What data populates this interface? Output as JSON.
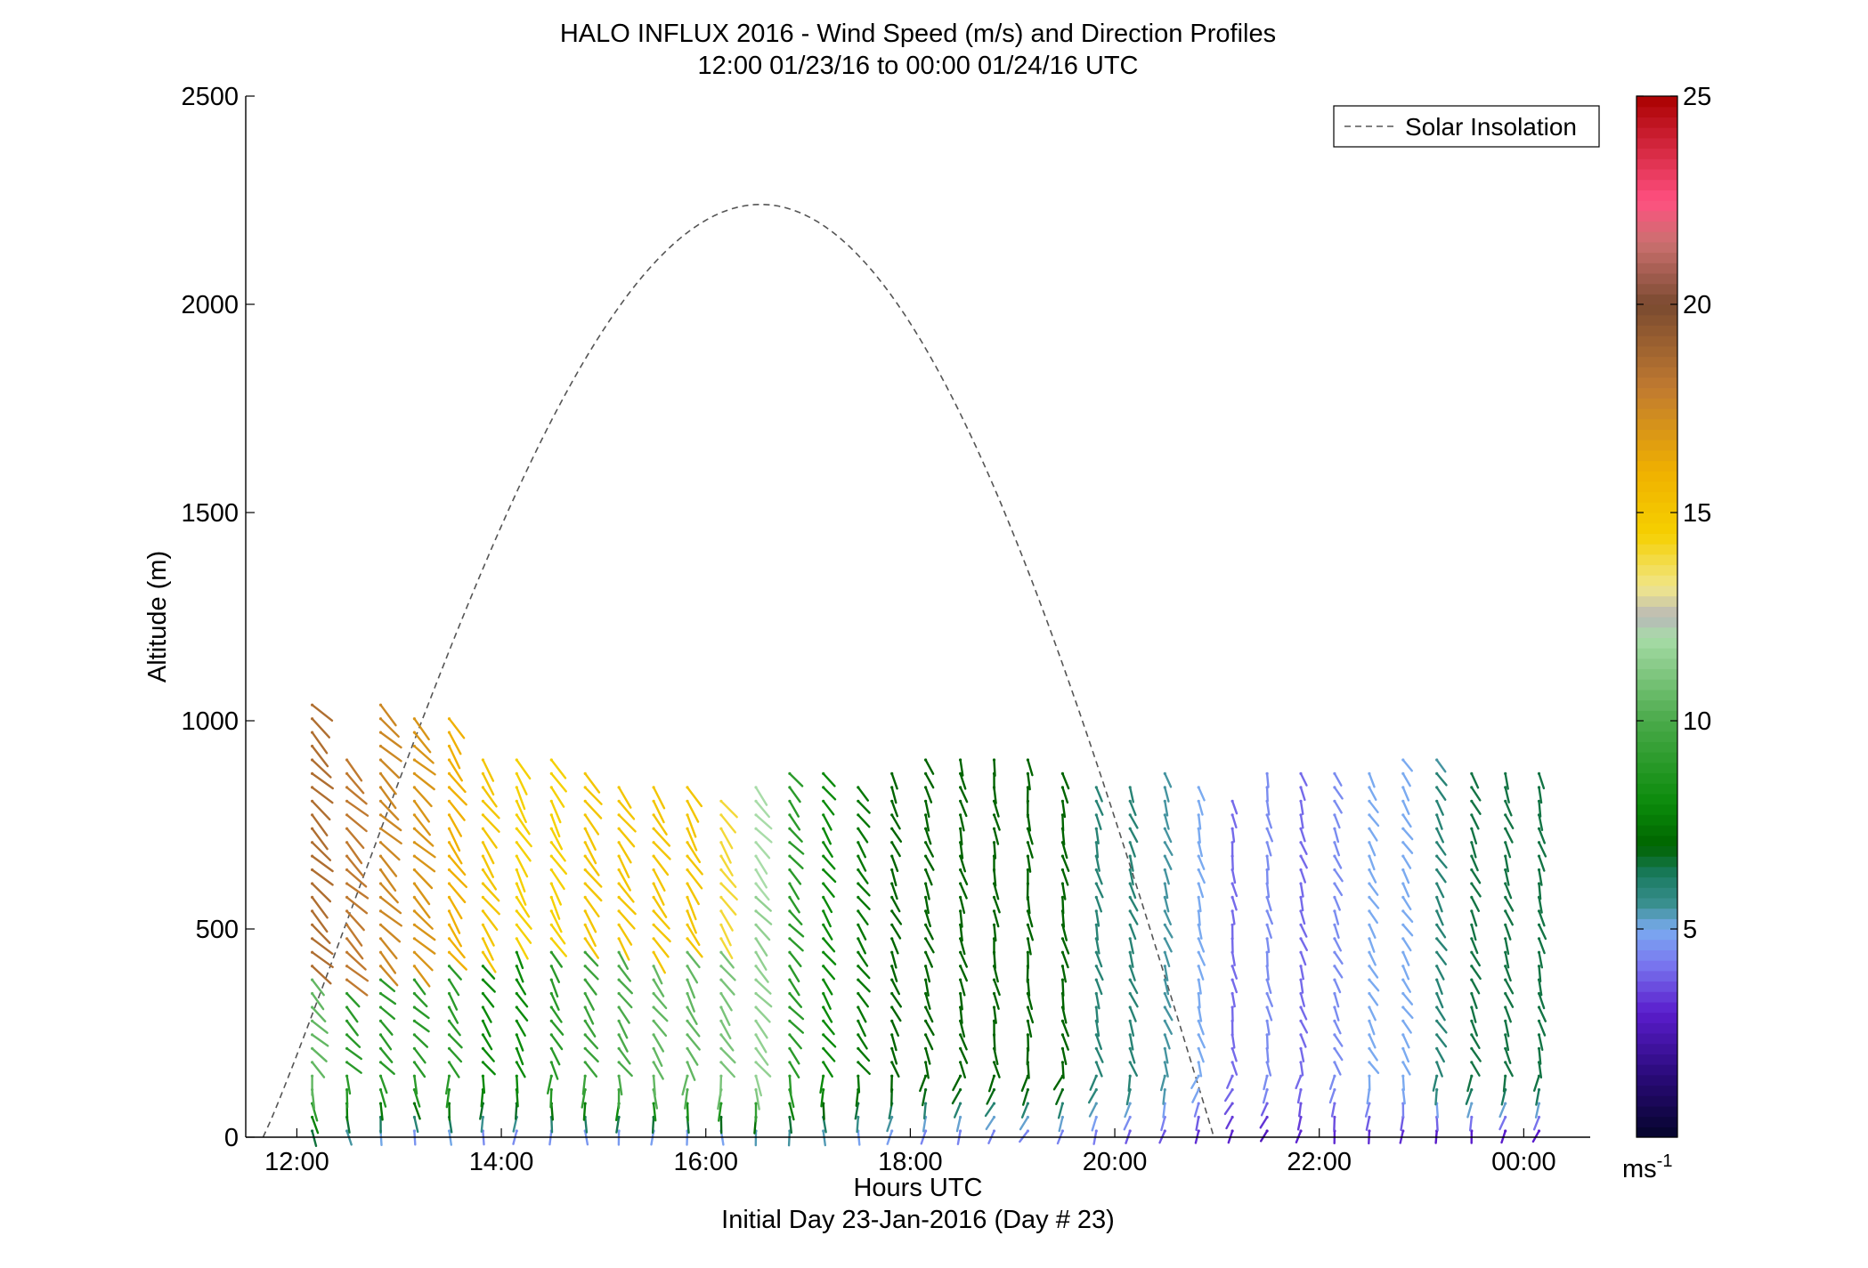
{
  "chart_data": {
    "type": "wind barb profile",
    "title": "HALO INFLUX 2016 - Wind Speed (m/s) and Direction Profiles",
    "subtitle": "12:00 01/23/16 to 00:00 01/24/16  UTC",
    "xlabel": "Hours UTC",
    "xlabel2": "Initial Day 23-Jan-2016 (Day # 23)",
    "ylabel": "Altitude (m)",
    "xlim": [
      11.5,
      24.65
    ],
    "ylim": [
      0,
      2500
    ],
    "xticks": [
      12,
      14,
      16,
      18,
      20,
      22,
      24
    ],
    "xtick_labels": [
      "12:00",
      "14:00",
      "16:00",
      "18:00",
      "20:00",
      "22:00",
      "00:00"
    ],
    "yticks": [
      0,
      500,
      1000,
      1500,
      2000,
      2500
    ],
    "ytick_labels": [
      "0",
      "500",
      "1000",
      "1500",
      "2000",
      "2500"
    ],
    "legend": {
      "entries": [
        "Solar Insolation"
      ],
      "position": "top-right"
    },
    "colorbar": {
      "min": 0,
      "max": 25,
      "ticks": [
        5,
        10,
        15,
        20,
        25
      ],
      "tick_labels": [
        "5",
        "10",
        "15",
        "20",
        "25"
      ],
      "unit_base": "ms",
      "unit_exp": "-1",
      "stops": [
        {
          "v": 0,
          "c": "#05052a"
        },
        {
          "v": 1.5,
          "c": "#2a0a7a"
        },
        {
          "v": 3,
          "c": "#5a1ccc"
        },
        {
          "v": 4.2,
          "c": "#7a7af0"
        },
        {
          "v": 5,
          "c": "#7aaaf0"
        },
        {
          "v": 5.6,
          "c": "#3a9090"
        },
        {
          "v": 6.3,
          "c": "#1a7a60"
        },
        {
          "v": 7,
          "c": "#006400"
        },
        {
          "v": 8,
          "c": "#0a8a0a"
        },
        {
          "v": 10,
          "c": "#4aaa4a"
        },
        {
          "v": 12,
          "c": "#a8dca8"
        },
        {
          "v": 12.5,
          "c": "#b8b8b8"
        },
        {
          "v": 13.2,
          "c": "#f0e68c"
        },
        {
          "v": 14.5,
          "c": "#f5d000"
        },
        {
          "v": 16,
          "c": "#f0b000"
        },
        {
          "v": 18,
          "c": "#c07a30"
        },
        {
          "v": 20,
          "c": "#7a4a30"
        },
        {
          "v": 21.5,
          "c": "#cc7070"
        },
        {
          "v": 22.5,
          "c": "#ff5080"
        },
        {
          "v": 25,
          "c": "#aa0000"
        }
      ]
    },
    "solar_insolation": {
      "start_hour": 11.67,
      "end_hour": 20.97,
      "peak_hour": 16.33,
      "peak_altitude": 2240
    },
    "profiles": [
      {
        "t": 12.08,
        "top": 1050,
        "s0": 6,
        "s1": 10.5,
        "s2": 18.5,
        "dir": 225,
        "bnd": 380
      },
      {
        "t": 12.42,
        "top": 920,
        "s0": 5,
        "s1": 9,
        "s2": 18,
        "dir": 225,
        "bnd": 360
      },
      {
        "t": 12.75,
        "top": 1060,
        "s0": 4.5,
        "s1": 9,
        "s2": 17.5,
        "dir": 225,
        "bnd": 400
      },
      {
        "t": 13.08,
        "top": 1010,
        "s0": 4,
        "s1": 9,
        "s2": 17,
        "dir": 225,
        "bnd": 410
      },
      {
        "t": 13.42,
        "top": 1010,
        "s0": 4.5,
        "s1": 9,
        "s2": 16,
        "dir": 215,
        "bnd": 420
      },
      {
        "t": 13.75,
        "top": 930,
        "s0": 4,
        "s1": 8,
        "s2": 15,
        "dir": 215,
        "bnd": 440
      },
      {
        "t": 14.08,
        "top": 930,
        "s0": 4,
        "s1": 8,
        "s2": 14.5,
        "dir": 210,
        "bnd": 450
      },
      {
        "t": 14.42,
        "top": 920,
        "s0": 4,
        "s1": 9,
        "s2": 14.5,
        "dir": 210,
        "bnd": 470
      },
      {
        "t": 14.75,
        "top": 880,
        "s0": 4,
        "s1": 9.5,
        "s2": 15,
        "dir": 215,
        "bnd": 460
      },
      {
        "t": 15.08,
        "top": 870,
        "s0": 4,
        "s1": 10,
        "s2": 15,
        "dir": 215,
        "bnd": 450
      },
      {
        "t": 15.42,
        "top": 870,
        "s0": 4,
        "s1": 10.5,
        "s2": 15,
        "dir": 215,
        "bnd": 440
      },
      {
        "t": 15.75,
        "top": 860,
        "s0": 4,
        "s1": 10.5,
        "s2": 15,
        "dir": 210,
        "bnd": 450
      },
      {
        "t": 16.08,
        "top": 820,
        "s0": 4,
        "s1": 11,
        "s2": 14,
        "dir": 215,
        "bnd": 470
      },
      {
        "t": 16.42,
        "top": 850,
        "s0": 4.5,
        "s1": 11.5,
        "s2": 12,
        "dir": 220,
        "bnd": 600
      },
      {
        "t": 16.75,
        "top": 880,
        "s0": 5,
        "s1": 9,
        "s2": 9,
        "dir": 220,
        "bnd": 900
      },
      {
        "t": 17.08,
        "top": 890,
        "s0": 5,
        "s1": 8,
        "s2": 8,
        "dir": 215,
        "bnd": 900
      },
      {
        "t": 17.42,
        "top": 850,
        "s0": 4.5,
        "s1": 7.5,
        "s2": 7.5,
        "dir": 215,
        "bnd": 900
      },
      {
        "t": 17.75,
        "top": 880,
        "s0": 4.5,
        "s1": 7,
        "s2": 7,
        "dir": 205,
        "bnd": 900
      },
      {
        "t": 18.08,
        "top": 930,
        "s0": 4,
        "s1": 7,
        "s2": 7,
        "dir": 200,
        "bnd": 900
      },
      {
        "t": 18.42,
        "top": 920,
        "s0": 4,
        "s1": 7,
        "s2": 7,
        "dir": 195,
        "bnd": 900
      },
      {
        "t": 18.75,
        "top": 920,
        "s0": 4,
        "s1": 7,
        "s2": 7,
        "dir": 190,
        "bnd": 900
      },
      {
        "t": 19.08,
        "top": 920,
        "s0": 4,
        "s1": 7,
        "s2": 7,
        "dir": 188,
        "bnd": 900
      },
      {
        "t": 19.42,
        "top": 880,
        "s0": 4,
        "s1": 7,
        "s2": 6,
        "dir": 192,
        "bnd": 900
      },
      {
        "t": 19.75,
        "top": 870,
        "s0": 4,
        "s1": 6,
        "s2": 6,
        "dir": 195,
        "bnd": 900
      },
      {
        "t": 20.08,
        "top": 860,
        "s0": 3.5,
        "s1": 6,
        "s2": 5.5,
        "dir": 200,
        "bnd": 900
      },
      {
        "t": 20.42,
        "top": 900,
        "s0": 3.5,
        "s1": 5.5,
        "s2": 6,
        "dir": 200,
        "bnd": 900
      },
      {
        "t": 20.75,
        "top": 870,
        "s0": 3,
        "s1": 5,
        "s2": 5.5,
        "dir": 195,
        "bnd": 900
      },
      {
        "t": 21.08,
        "top": 830,
        "s0": 3,
        "s1": 4,
        "s2": 5,
        "dir": 190,
        "bnd": 900
      },
      {
        "t": 21.42,
        "top": 880,
        "s0": 2.5,
        "s1": 4.5,
        "s2": 5,
        "dir": 192,
        "bnd": 900
      },
      {
        "t": 21.75,
        "top": 890,
        "s0": 3,
        "s1": 4,
        "s2": 4.5,
        "dir": 198,
        "bnd": 900
      },
      {
        "t": 22.08,
        "top": 900,
        "s0": 3,
        "s1": 4.5,
        "s2": 4.5,
        "dir": 205,
        "bnd": 900
      },
      {
        "t": 22.42,
        "top": 890,
        "s0": 3,
        "s1": 5,
        "s2": 4.5,
        "dir": 210,
        "bnd": 900
      },
      {
        "t": 22.75,
        "top": 910,
        "s0": 3,
        "s1": 5,
        "s2": 5,
        "dir": 212,
        "bnd": 900
      },
      {
        "t": 23.08,
        "top": 910,
        "s0": 2.5,
        "s1": 6,
        "s2": 5.5,
        "dir": 210,
        "bnd": 900
      },
      {
        "t": 23.42,
        "top": 880,
        "s0": 2.5,
        "s1": 6.5,
        "s2": 5.5,
        "dir": 205,
        "bnd": 900
      },
      {
        "t": 23.75,
        "top": 880,
        "s0": 2.5,
        "s1": 6.5,
        "s2": 6,
        "dir": 200,
        "bnd": 900
      },
      {
        "t": 24.08,
        "top": 880,
        "s0": 2.5,
        "s1": 6.5,
        "s2": 4,
        "dir": 195,
        "bnd": 900
      }
    ]
  }
}
